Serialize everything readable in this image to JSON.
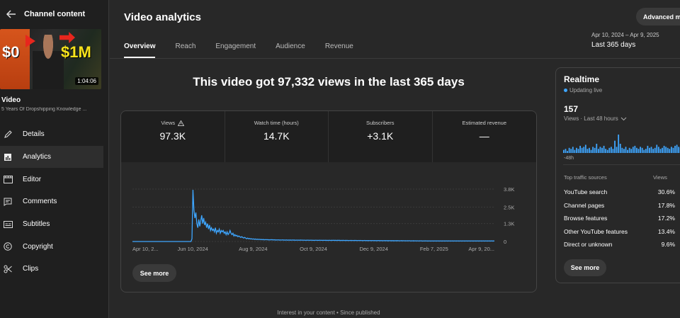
{
  "sidebar": {
    "title": "Channel content",
    "thumbnail": {
      "left_text": "$0",
      "right_text": "$1M",
      "duration": "1:04:06"
    },
    "video_label": "Video",
    "video_subtitle": "5 Years Of Dropshipping Knowledge ...",
    "items": [
      {
        "label": "Details",
        "icon": "pencil-icon"
      },
      {
        "label": "Analytics",
        "icon": "analytics-icon",
        "active": true
      },
      {
        "label": "Editor",
        "icon": "film-icon"
      },
      {
        "label": "Comments",
        "icon": "comment-icon"
      },
      {
        "label": "Subtitles",
        "icon": "subtitles-icon"
      },
      {
        "label": "Copyright",
        "icon": "copyright-icon"
      },
      {
        "label": "Clips",
        "icon": "scissors-icon"
      }
    ]
  },
  "header": {
    "title": "Video analytics",
    "advanced_label": "Advanced m",
    "tabs": [
      "Overview",
      "Reach",
      "Engagement",
      "Audience",
      "Revenue"
    ],
    "date_range": "Apr 10, 2024 – Apr 9, 2025",
    "date_label": "Last 365 days"
  },
  "main": {
    "headline": "This video got 97,332 views in the last 365 days",
    "metrics": [
      {
        "label": "Views",
        "value": "97.3K"
      },
      {
        "label": "Watch time (hours)",
        "value": "14.7K"
      },
      {
        "label": "Subscribers",
        "value": "+3.1K"
      },
      {
        "label": "Estimated revenue",
        "value": "—"
      }
    ],
    "see_more": "See more",
    "footer_note": "Interest in your content • Since published"
  },
  "chart_data": {
    "type": "line",
    "x_tick_labels": [
      "Apr 10, 2...",
      "Jun 10, 2024",
      "Aug 9, 2024",
      "Oct 9, 2024",
      "Dec 9, 2024",
      "Feb 7, 2025",
      "Apr 9, 20..."
    ],
    "y_tick_labels": [
      "3.8K",
      "2.5K",
      "1.3K",
      "0"
    ],
    "ylim": [
      0,
      3800
    ],
    "color": "#3ea6ff",
    "series": [
      {
        "values": [
          0,
          0,
          0,
          0,
          0,
          0,
          0,
          0,
          0,
          0,
          0,
          0,
          0,
          0,
          0,
          0,
          0,
          0,
          0,
          0,
          0,
          0,
          0,
          0,
          0,
          0,
          0,
          0,
          0,
          0,
          0,
          0,
          0,
          0,
          0,
          0,
          0,
          0,
          0,
          0,
          0,
          0,
          0,
          0,
          0,
          0,
          0,
          0,
          0,
          0,
          0,
          0,
          0,
          0,
          0,
          0,
          0,
          0,
          0,
          0,
          0,
          200,
          3750,
          2300,
          1700,
          2100,
          1300,
          1000,
          1600,
          1100,
          1500,
          1900,
          1300,
          1700,
          1200,
          1400,
          1000,
          1300,
          900,
          1200,
          800,
          1000,
          800,
          900,
          700,
          1000,
          600,
          800,
          700,
          900,
          600,
          800,
          700,
          800,
          600,
          700,
          500,
          700,
          500,
          600,
          800,
          600,
          500,
          600,
          400,
          500,
          400,
          450,
          350,
          400,
          350,
          300,
          350,
          300,
          250,
          300,
          250,
          200,
          250,
          200,
          220,
          180,
          200,
          170,
          190,
          160,
          180,
          150,
          170,
          150,
          160,
          140,
          150,
          130,
          150,
          120,
          140,
          130,
          140,
          120,
          130,
          110,
          140,
          120,
          130,
          110,
          130,
          100,
          120,
          110,
          120,
          100,
          115,
          105,
          120,
          100,
          110,
          100,
          115,
          95,
          110,
          100,
          105,
          95,
          110,
          100,
          105,
          90,
          100,
          95,
          100,
          90,
          105,
          95,
          100,
          90,
          100,
          85,
          95,
          90,
          100,
          85,
          95,
          90,
          95,
          80,
          90,
          85,
          95,
          85,
          90,
          80,
          95,
          85,
          90,
          80,
          90,
          85,
          90,
          80,
          85,
          80,
          90,
          75,
          85,
          80,
          90,
          80,
          85,
          75,
          85,
          80,
          85,
          75,
          80,
          75,
          85,
          70,
          80,
          75,
          80,
          70,
          75,
          70,
          80,
          70,
          75,
          70,
          80,
          70,
          75,
          65,
          75,
          70,
          75,
          65,
          70,
          65,
          75,
          65,
          70,
          60,
          70,
          65,
          70,
          60,
          70,
          65,
          70,
          60,
          65,
          60,
          70,
          60,
          65,
          60,
          65,
          55,
          65,
          60,
          65,
          55,
          60,
          55,
          65,
          55,
          60,
          55,
          60,
          50,
          60,
          55,
          60,
          50,
          55,
          50,
          60,
          50,
          55,
          50,
          55,
          45,
          55,
          50,
          55,
          45,
          50,
          45,
          55,
          45,
          50,
          45,
          50,
          40,
          50,
          45,
          50,
          40,
          45,
          40,
          50,
          40,
          45,
          40,
          45,
          40,
          45,
          40,
          45,
          40,
          45,
          40,
          45,
          40,
          45,
          40,
          45,
          40,
          45,
          40,
          45,
          40,
          45,
          40,
          45,
          40,
          45,
          40,
          45,
          40,
          45,
          40,
          45,
          40,
          45,
          40,
          45,
          40,
          45,
          40,
          45,
          40,
          45,
          40,
          45,
          40,
          45,
          40,
          45,
          40,
          45,
          40,
          45,
          40,
          45,
          40,
          45,
          40,
          45,
          40,
          45,
          40,
          45,
          40,
          45,
          40,
          45,
          40,
          45,
          40,
          45,
          40
        ]
      }
    ]
  },
  "realtime": {
    "title": "Realtime",
    "status": "Updating live",
    "count": "157",
    "period": "Views · Last 48 hours",
    "range_label": "-48h",
    "bars": [
      3,
      4,
      2,
      5,
      4,
      6,
      3,
      5,
      4,
      7,
      5,
      6,
      8,
      4,
      5,
      3,
      6,
      5,
      9,
      4,
      6,
      5,
      7,
      4,
      3,
      5,
      6,
      4,
      12,
      6,
      18,
      9,
      5,
      4,
      6,
      3,
      5,
      4,
      6,
      7,
      5,
      4,
      6,
      5,
      3,
      4,
      7,
      5,
      6,
      4,
      5,
      8,
      6,
      4,
      5,
      7,
      6,
      5,
      4,
      6,
      5,
      7,
      8,
      6,
      5,
      9
    ],
    "table_header_source": "Top traffic sources",
    "table_header_views": "Views",
    "sources": [
      {
        "name": "YouTube search",
        "pct": "30.6%",
        "level": 1.0
      },
      {
        "name": "Channel pages",
        "pct": "17.8%",
        "level": 0.58
      },
      {
        "name": "Browse features",
        "pct": "17.2%",
        "level": 0.56
      },
      {
        "name": "Other YouTube features",
        "pct": "13.4%",
        "level": 0.44
      },
      {
        "name": "Direct or unknown",
        "pct": "9.6%",
        "level": 0.31
      }
    ],
    "see_more": "See more"
  }
}
